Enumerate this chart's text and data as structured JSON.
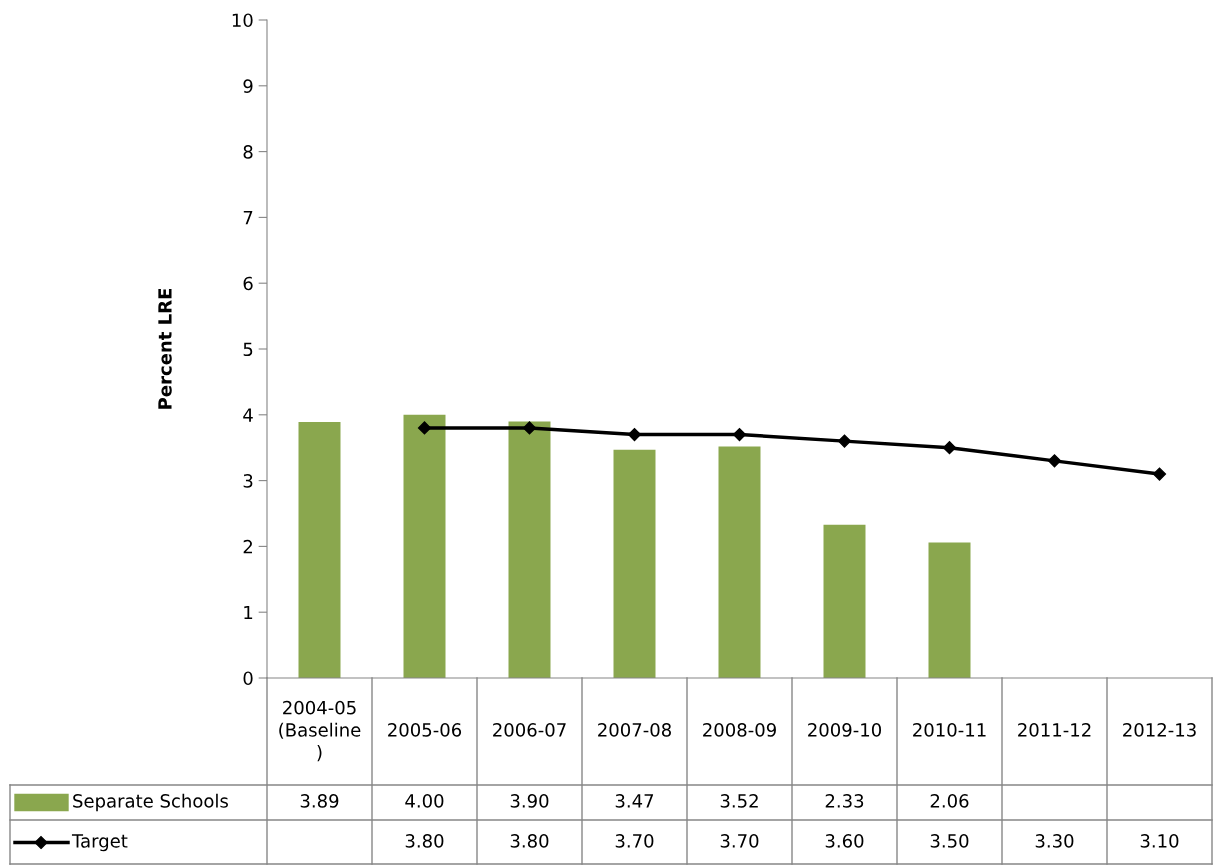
{
  "chart_data": {
    "type": "bar",
    "ylabel": "Percent LRE",
    "categories": [
      "2004-05\n(Baseline\n)",
      "2005-06",
      "2006-07",
      "2007-08",
      "2008-09",
      "2009-10",
      "2010-11",
      "2011-12",
      "2012-13"
    ],
    "series": [
      {
        "name": "Separate Schools",
        "color": "#8aa74e",
        "values": [
          3.89,
          4.0,
          3.9,
          3.47,
          3.52,
          2.33,
          2.06,
          null,
          null
        ],
        "value_labels": [
          "3.89",
          "4.00",
          "3.90",
          "3.47",
          "3.52",
          "2.33",
          "2.06",
          null,
          null
        ]
      },
      {
        "name": "Target",
        "type": "line",
        "color": "#000000",
        "marker": "diamond",
        "line_style": "solid",
        "values": [
          null,
          3.8,
          3.8,
          3.7,
          3.7,
          3.6,
          3.5,
          3.3,
          3.1
        ],
        "value_labels": [
          null,
          "3.80",
          "3.80",
          "3.70",
          "3.70",
          "3.60",
          "3.50",
          "3.30",
          "3.10"
        ]
      }
    ],
    "ylim": [
      0,
      10
    ],
    "yticks": [
      0,
      1,
      2,
      3,
      4,
      5,
      6,
      7,
      8,
      9,
      10
    ],
    "grid": false,
    "legend": "bottom left"
  }
}
